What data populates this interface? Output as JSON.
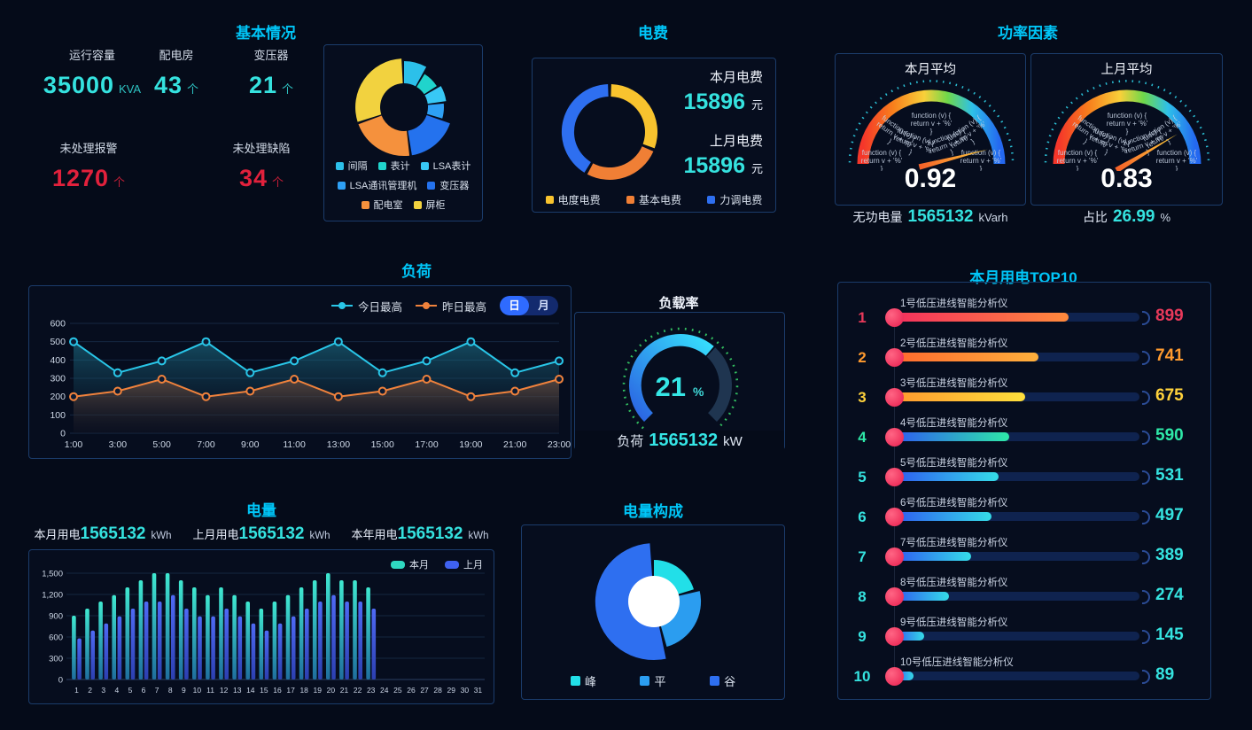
{
  "sections": {
    "basic": {
      "title": "基本情况",
      "stats": [
        {
          "label": "运行容量",
          "value": "35000",
          "unit": "KVA",
          "type": "cyan"
        },
        {
          "label": "配电房",
          "value": "43",
          "unit": "个",
          "type": "cyan"
        },
        {
          "label": "变压器",
          "value": "21",
          "unit": "个",
          "type": "cyan"
        },
        {
          "label": "未处理报警",
          "value": "1270",
          "unit": "个",
          "type": "red"
        },
        {
          "label": "未处理缺陷",
          "value": "34",
          "unit": "个",
          "type": "red"
        }
      ]
    },
    "fee": {
      "title": "电费",
      "items": [
        {
          "label": "本月电费",
          "value": "15896",
          "unit": "元"
        },
        {
          "label": "上月电费",
          "value": "15896",
          "unit": "元"
        }
      ]
    },
    "power_factor": {
      "title": "功率因素",
      "gauges": [
        {
          "title": "本月平均",
          "value": "0.92"
        },
        {
          "title": "上月平均",
          "value": "0.83"
        }
      ],
      "footers": [
        {
          "label": "无功电量",
          "value": "1565132",
          "unit": "kVarh"
        },
        {
          "label": "占比",
          "value": "26.99",
          "unit": "%"
        }
      ],
      "glitch_text": [
        "function (v) {",
        "return v + '%'",
        "}"
      ]
    },
    "load": {
      "title": "负荷",
      "legend": [
        {
          "label": "今日最高",
          "color": "#29c6e8"
        },
        {
          "label": "昨日最高",
          "color": "#f0823c"
        }
      ],
      "toggle": {
        "day": "日",
        "month": "月",
        "active": "day"
      }
    },
    "load_rate": {
      "title": "负载率",
      "value": "21",
      "unit": "%",
      "footer": {
        "label": "负荷",
        "value": "1565132",
        "unit": "kW"
      }
    },
    "top10": {
      "title": "本月用电TOP10"
    },
    "energy": {
      "title": "电量",
      "stats": [
        {
          "label": "本月用电",
          "value": "1565132",
          "unit": "kWh"
        },
        {
          "label": "上月用电",
          "value": "1565132",
          "unit": "kWh"
        },
        {
          "label": "本年用电",
          "value": "1565132",
          "unit": "kWh"
        }
      ],
      "legend": [
        {
          "label": "本月",
          "color": "#2fd8c0"
        },
        {
          "label": "上月",
          "color": "#3f62f0"
        }
      ]
    },
    "mix": {
      "title": "电量构成",
      "legend": [
        {
          "label": "峰",
          "color": "#22dfe8"
        },
        {
          "label": "平",
          "color": "#2b9df0"
        },
        {
          "label": "谷",
          "color": "#2e6ff0"
        }
      ]
    }
  },
  "chart_data": [
    {
      "id": "basic-donut",
      "type": "pie",
      "variant": "rose-donut",
      "series": [
        {
          "name": "间隔",
          "value": 8,
          "color": "#2cc0ea",
          "r": 52
        },
        {
          "name": "表计",
          "value": 7,
          "color": "#20d4cc",
          "r": 44
        },
        {
          "name": "LSA表计",
          "value": 6,
          "color": "#38c8f5",
          "r": 48
        },
        {
          "name": "LSA通讯管理机",
          "value": 6,
          "color": "#2ea0f5",
          "r": 45
        },
        {
          "name": "变压器",
          "value": 17,
          "color": "#2472ee",
          "r": 55
        },
        {
          "name": "配电室",
          "value": 21,
          "color": "#f5913d",
          "r": 55
        },
        {
          "name": "屏柜",
          "value": 29,
          "color": "#f2d23f",
          "r": 55
        }
      ]
    },
    {
      "id": "fee-donut",
      "type": "pie",
      "variant": "donut",
      "series": [
        {
          "name": "电度电费",
          "value": 31,
          "color": "#f8c32e"
        },
        {
          "name": "基本电费",
          "value": 27,
          "color": "#f07f35"
        },
        {
          "name": "力调电费",
          "value": 42,
          "color": "#2e6ff0"
        }
      ]
    },
    {
      "id": "pf-gauge-1",
      "type": "gauge",
      "min": 0,
      "max": 1,
      "value": 0.92
    },
    {
      "id": "pf-gauge-2",
      "type": "gauge",
      "min": 0,
      "max": 1,
      "value": 0.83
    },
    {
      "id": "load-line",
      "type": "line",
      "x": [
        "1:00",
        "3:00",
        "5:00",
        "7:00",
        "9:00",
        "11:00",
        "13:00",
        "15:00",
        "17:00",
        "19:00",
        "21:00",
        "23:00"
      ],
      "ylim": [
        0,
        600
      ],
      "yticks": [
        0,
        100,
        200,
        300,
        400,
        500,
        600
      ],
      "series": [
        {
          "name": "今日最高",
          "color": "#29c6e8",
          "values": [
            500,
            330,
            395,
            500,
            330,
            395,
            500,
            330,
            395,
            500,
            330,
            395
          ]
        },
        {
          "name": "昨日最高",
          "color": "#f0823c",
          "values": [
            200,
            230,
            295,
            200,
            230,
            295,
            200,
            230,
            295,
            200,
            230,
            295
          ]
        }
      ]
    },
    {
      "id": "load-rate-gauge",
      "type": "gauge",
      "value": 21,
      "max": 100,
      "progress": 0.65
    },
    {
      "id": "top10-bars",
      "type": "bar",
      "orientation": "horizontal",
      "max": 1270,
      "rows": [
        {
          "rank": "1",
          "label": "1号低压进线智能分析仪",
          "value": 899,
          "color": "#e8395a",
          "bar": [
            "#f5315d",
            "#ff8a3c"
          ]
        },
        {
          "rank": "2",
          "label": "2号低压进线智能分析仪",
          "value": 741,
          "color": "#ff9a2e",
          "bar": [
            "#ff6a2e",
            "#ffb03c"
          ]
        },
        {
          "rank": "3",
          "label": "3号低压进线智能分析仪",
          "value": 675,
          "color": "#ffd23c",
          "bar": [
            "#ff9a2e",
            "#ffe03c"
          ]
        },
        {
          "rank": "4",
          "label": "4号低压进线智能分析仪",
          "value": 590,
          "color": "#2ee8a8",
          "bar": [
            "#2e5ef0",
            "#2ee8a8"
          ]
        },
        {
          "rank": "5",
          "label": "5号低压进线智能分析仪",
          "value": 531,
          "color": "#35e3e0",
          "bar": [
            "#2e5ef0",
            "#35dce8"
          ]
        },
        {
          "rank": "6",
          "label": "6号低压进线智能分析仪",
          "value": 497,
          "color": "#35e3e0",
          "bar": [
            "#2e5ef0",
            "#35dce8"
          ]
        },
        {
          "rank": "7",
          "label": "7号低压进线智能分析仪",
          "value": 389,
          "color": "#35e3e0",
          "bar": [
            "#2e5ef0",
            "#35dce8"
          ]
        },
        {
          "rank": "8",
          "label": "8号低压进线智能分析仪",
          "value": 274,
          "color": "#35e3e0",
          "bar": [
            "#2e5ef0",
            "#35dce8"
          ]
        },
        {
          "rank": "9",
          "label": "9号低压进线智能分析仪",
          "value": 145,
          "color": "#35e3e0",
          "bar": [
            "#2e5ef0",
            "#35dce8"
          ]
        },
        {
          "rank": "10",
          "label": "10号低压进线智能分析仪",
          "value": 89,
          "color": "#35e3e0",
          "bar": [
            "#2e5ef0",
            "#35dce8"
          ]
        }
      ]
    },
    {
      "id": "energy-bars",
      "type": "bar",
      "categories": [
        "1",
        "2",
        "3",
        "4",
        "5",
        "6",
        "7",
        "8",
        "9",
        "10",
        "11",
        "12",
        "13",
        "14",
        "15",
        "16",
        "17",
        "18",
        "19",
        "20",
        "21",
        "22",
        "23",
        "24",
        "25",
        "26",
        "27",
        "28",
        "29",
        "30",
        "31"
      ],
      "ylim": [
        0,
        1500
      ],
      "ytick_values": [
        0,
        300,
        600,
        900,
        1200,
        1500
      ],
      "yticks": [
        "0",
        "300",
        "600",
        "900",
        "1,200",
        "1,500"
      ],
      "series": [
        {
          "name": "本月",
          "colors": [
            "#3fe8d0",
            "#1f6e9e"
          ],
          "values": [
            900,
            1000,
            1100,
            1190,
            1300,
            1400,
            1500,
            1500,
            1400,
            1300,
            1190,
            1300,
            1190,
            1100,
            1000,
            1100,
            1190,
            1300,
            1400,
            1500,
            1400,
            1400,
            1300
          ]
        },
        {
          "name": "上月",
          "colors": [
            "#4f6af5",
            "#2c3fb0"
          ],
          "values": [
            580,
            690,
            790,
            890,
            1000,
            1100,
            1100,
            1190,
            1000,
            890,
            890,
            1000,
            890,
            790,
            690,
            790,
            890,
            1000,
            1100,
            1190,
            1100,
            1100,
            1000
          ]
        }
      ]
    },
    {
      "id": "mix-pie",
      "type": "pie",
      "variant": "rose",
      "series": [
        {
          "name": "峰",
          "value": 21,
          "color": "#22dfe8",
          "r": 47
        },
        {
          "name": "平",
          "value": 25,
          "color": "#2b9df0",
          "r": 53
        },
        {
          "name": "谷",
          "value": 54,
          "color": "#2e6ff0",
          "r": 66
        }
      ]
    }
  ]
}
